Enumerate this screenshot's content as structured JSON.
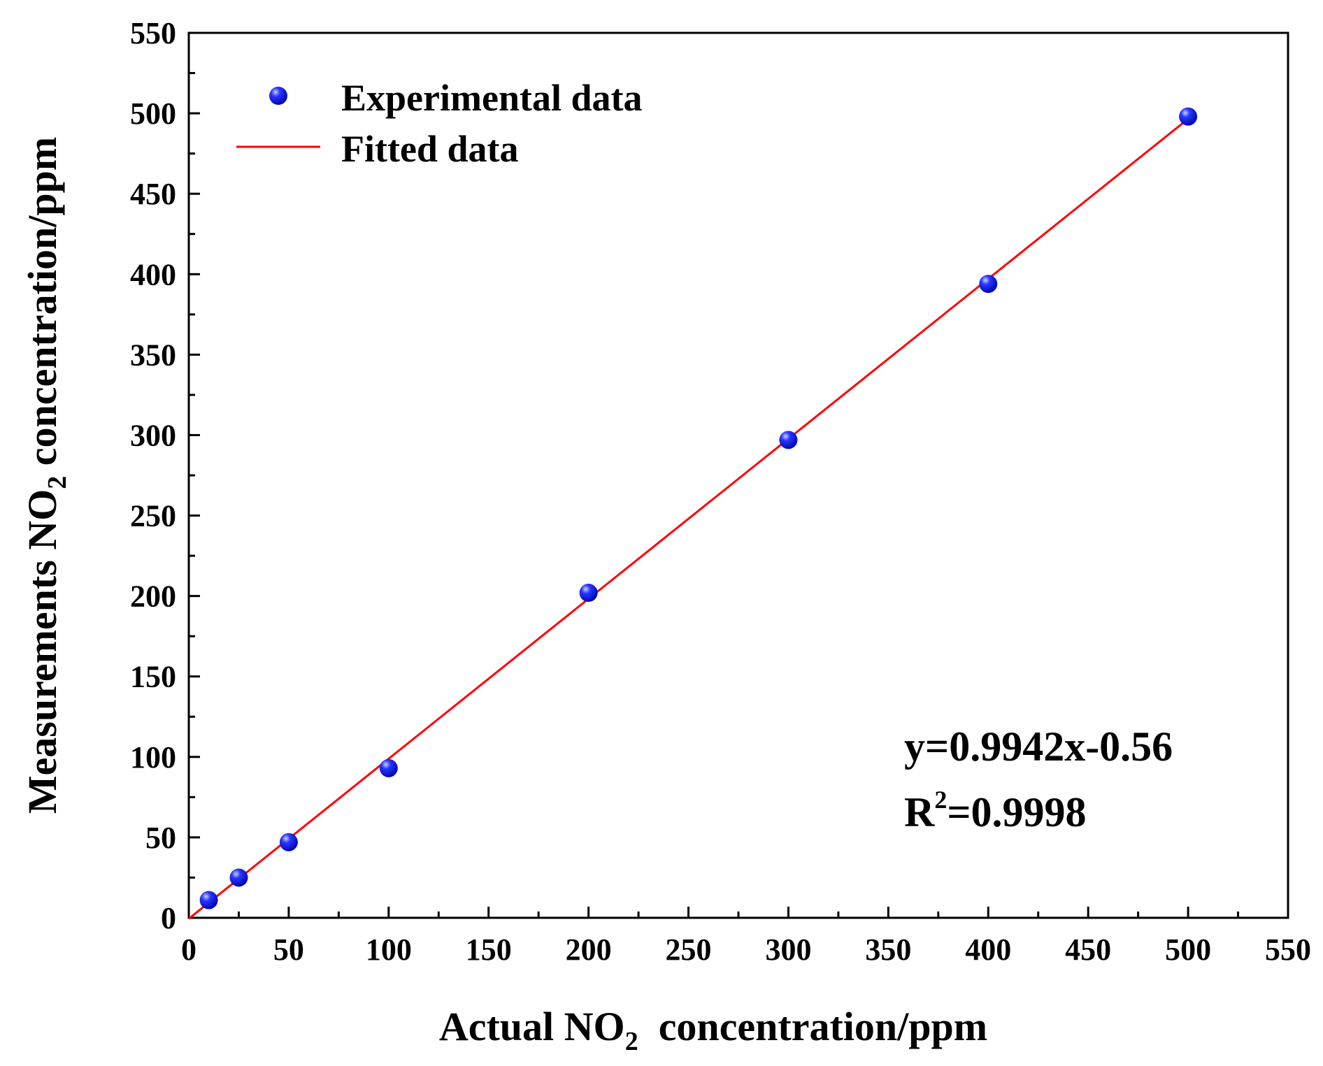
{
  "chart_data": {
    "type": "scatter",
    "title": "",
    "xlabel": {
      "prefix": "Actual NO",
      "sub": "2",
      "suffix": "  concentration/ppm"
    },
    "ylabel": {
      "prefix": "Measurements NO",
      "sub": "2",
      "suffix": " concentration/ppm"
    },
    "xlim": [
      0,
      550
    ],
    "ylim": [
      0,
      550
    ],
    "xticks": [
      "0",
      "50",
      "100",
      "150",
      "200",
      "250",
      "300",
      "350",
      "400",
      "450",
      "500",
      "550"
    ],
    "yticks": [
      "0",
      "50",
      "100",
      "150",
      "200",
      "250",
      "300",
      "350",
      "400",
      "450",
      "500",
      "550"
    ],
    "grid": false,
    "legend_position": "top-left",
    "series": [
      {
        "name": "Experimental data",
        "kind": "points",
        "color": "#0a14e6",
        "x": [
          10,
          25,
          50,
          100,
          200,
          300,
          400,
          500
        ],
        "y": [
          11,
          25,
          47,
          93,
          202,
          297,
          394,
          498
        ]
      },
      {
        "name": "Fitted data",
        "kind": "line",
        "color": "#ff0000",
        "slope": 0.9942,
        "intercept": -0.56,
        "x_range": [
          0,
          500
        ]
      }
    ],
    "annotations": {
      "equation": "y=0.9942x-0.56",
      "r2_prefix": "R",
      "r2_sup": "2",
      "r2_suffix": "=0.9998"
    }
  }
}
